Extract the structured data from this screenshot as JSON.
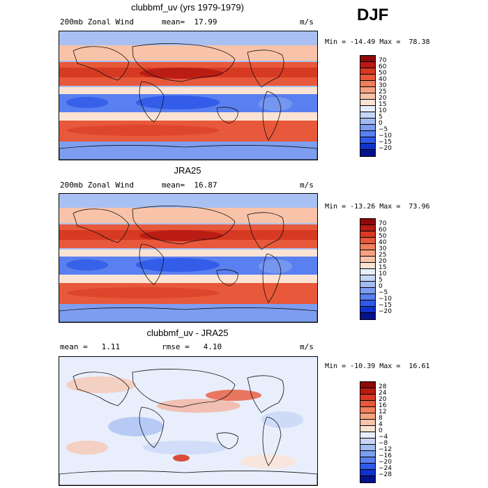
{
  "season": "DJF",
  "panels": [
    {
      "title": "clubbmf_uv (yrs 1979-1979)",
      "left_text": "200mb Zonal Wind",
      "center_text": "mean=  17.99",
      "units": "m/s",
      "minmax": "Min = -14.49 Max =  78.38",
      "map_kind": "wind",
      "colorbar": {
        "labels": [
          "70",
          "60",
          "50",
          "40",
          "30",
          "25",
          "20",
          "15",
          "10",
          "5",
          "0",
          "−5",
          "−10",
          "−15",
          "−20"
        ],
        "colors": [
          "#8c0a0a",
          "#b81b14",
          "#d73a22",
          "#e8583a",
          "#f07f5c",
          "#f6a283",
          "#f9c3a9",
          "#fbe3d4",
          "#e8eefb",
          "#c7d6f7",
          "#a2bbf2",
          "#7d9ef0",
          "#5a7ff0",
          "#2f5ae8",
          "#0f32c8",
          "#05128c"
        ]
      }
    },
    {
      "title": "JRA25",
      "left_text": "200mb Zonal Wind",
      "center_text": "mean=  16.87",
      "units": "m/s",
      "minmax": "Min = -13.26 Max =  73.96",
      "map_kind": "wind",
      "colorbar": {
        "labels": [
          "70",
          "60",
          "50",
          "40",
          "30",
          "25",
          "20",
          "15",
          "10",
          "5",
          "0",
          "−5",
          "−10",
          "−15",
          "−20"
        ],
        "colors": [
          "#8c0a0a",
          "#b81b14",
          "#d73a22",
          "#e8583a",
          "#f07f5c",
          "#f6a283",
          "#f9c3a9",
          "#fbe3d4",
          "#e8eefb",
          "#c7d6f7",
          "#a2bbf2",
          "#7d9ef0",
          "#5a7ff0",
          "#2f5ae8",
          "#0f32c8",
          "#05128c"
        ]
      }
    },
    {
      "title": "clubbmf_uv - JRA25",
      "left_text": "mean =   1.11",
      "center_text": "rmse =   4.10",
      "units": "m/s",
      "minmax": "Min = -10.39 Max =  16.61",
      "map_kind": "diff",
      "colorbar": {
        "labels": [
          "28",
          "24",
          "20",
          "16",
          "12",
          "8",
          "4",
          "0",
          "−4",
          "−8",
          "−12",
          "−16",
          "−20",
          "−24",
          "−28"
        ],
        "colors": [
          "#8c0a0a",
          "#b81b14",
          "#d73a22",
          "#e8583a",
          "#f07f5c",
          "#f6a283",
          "#f9c3a9",
          "#fbe3d4",
          "#e8eefb",
          "#c7d6f7",
          "#a2bbf2",
          "#7d9ef0",
          "#5a7ff0",
          "#2f5ae8",
          "#0f32c8",
          "#05128c"
        ]
      }
    }
  ]
}
